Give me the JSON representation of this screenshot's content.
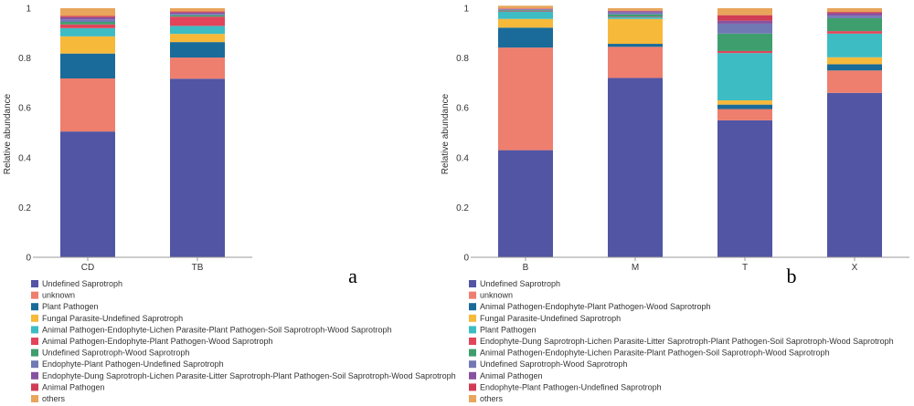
{
  "chart_data": [
    {
      "type": "bar",
      "stacked": true,
      "panel_label": "a",
      "ylabel": "Relative abundance",
      "ylim": [
        0,
        1
      ],
      "yticks": [
        "0",
        "0.2",
        "0.4",
        "0.6",
        "0.8",
        "1"
      ],
      "categories": [
        "CD",
        "TB"
      ],
      "series": [
        {
          "name": "Undefined Saprotroph",
          "color": "#5155a4",
          "values": [
            0.505,
            0.717
          ]
        },
        {
          "name": "unknown",
          "color": "#ee7e6d",
          "values": [
            0.213,
            0.085
          ]
        },
        {
          "name": "Plant Pathogen",
          "color": "#1a6b9a",
          "values": [
            0.1,
            0.062
          ]
        },
        {
          "name": "Fungal Parasite-Undefined Saprotroph",
          "color": "#f7b93a",
          "values": [
            0.069,
            0.033
          ]
        },
        {
          "name": "Animal Pathogen-Endophyte-Lichen Parasite-Plant Pathogen-Soil Saprotroph-Wood Saprotroph",
          "color": "#3dbcc4",
          "values": [
            0.033,
            0.032
          ]
        },
        {
          "name": "Animal Pathogen-Endophyte-Plant Pathogen-Wood Saprotroph",
          "color": "#e2445a",
          "values": [
            0.015,
            0.037
          ]
        },
        {
          "name": "Undefined Saprotroph-Wood Saprotroph",
          "color": "#3e9e6e",
          "values": [
            0.01,
            0.006
          ]
        },
        {
          "name": "Endophyte-Plant Pathogen-Undefined Saprotroph",
          "color": "#7179b5",
          "values": [
            0.01,
            0.005
          ]
        },
        {
          "name": "Endophyte-Dung Saprotroph-Lichen Parasite-Litter Saprotroph-Plant Pathogen-Soil Saprotroph-Wood Saprotroph",
          "color": "#8752a0",
          "values": [
            0.009,
            0.006
          ]
        },
        {
          "name": "Animal Pathogen",
          "color": "#d13c55",
          "values": [
            0.005,
            0.004
          ]
        },
        {
          "name": "others",
          "color": "#e8a55b",
          "values": [
            0.031,
            0.013
          ]
        }
      ]
    },
    {
      "type": "bar",
      "stacked": true,
      "panel_label": "b",
      "ylabel": "Relative abundance",
      "ylim": [
        0,
        1
      ],
      "yticks": [
        "0",
        "0.2",
        "0.4",
        "0.6",
        "0.8",
        "1"
      ],
      "categories": [
        "B",
        "M",
        "T",
        "X"
      ],
      "series": [
        {
          "name": "Undefined Saprotroph",
          "color": "#5155a4",
          "values": [
            0.43,
            0.72,
            0.55,
            0.66
          ]
        },
        {
          "name": "unknown",
          "color": "#ee7e6d",
          "values": [
            0.412,
            0.125,
            0.045,
            0.09
          ]
        },
        {
          "name": "Animal Pathogen-Endophyte-Plant Pathogen-Wood Saprotroph",
          "color": "#1a6b9a",
          "values": [
            0.08,
            0.012,
            0.018,
            0.025
          ]
        },
        {
          "name": "Fungal Parasite-Undefined Saprotroph",
          "color": "#f7b93a",
          "values": [
            0.035,
            0.1,
            0.017,
            0.028
          ]
        },
        {
          "name": "Plant Pathogen",
          "color": "#3dbcc4",
          "values": [
            0.03,
            0.008,
            0.19,
            0.095
          ]
        },
        {
          "name": "Endophyte-Dung Saprotroph-Lichen Parasite-Litter Saprotroph-Plant Pathogen-Soil Saprotroph-Wood Saprotroph",
          "color": "#e2445a",
          "values": [
            0.003,
            0.002,
            0.008,
            0.01
          ]
        },
        {
          "name": "Animal Pathogen-Endophyte-Lichen Parasite-Plant Pathogen-Soil Saprotroph-Wood Saprotroph",
          "color": "#3e9e6e",
          "values": [
            0.003,
            0.008,
            0.07,
            0.052
          ]
        },
        {
          "name": "Undefined Saprotroph-Wood Saprotroph",
          "color": "#7179b5",
          "values": [
            0.002,
            0.008,
            0.04,
            0.01
          ]
        },
        {
          "name": "Animal Pathogen",
          "color": "#8752a0",
          "values": [
            0.002,
            0.005,
            0.012,
            0.01
          ]
        },
        {
          "name": "Endophyte-Plant Pathogen-Undefined Saprotroph",
          "color": "#d13c55",
          "values": [
            0.002,
            0.002,
            0.022,
            0.005
          ]
        },
        {
          "name": "others",
          "color": "#e8a55b",
          "values": [
            0.011,
            0.01,
            0.028,
            0.015
          ]
        }
      ]
    }
  ]
}
